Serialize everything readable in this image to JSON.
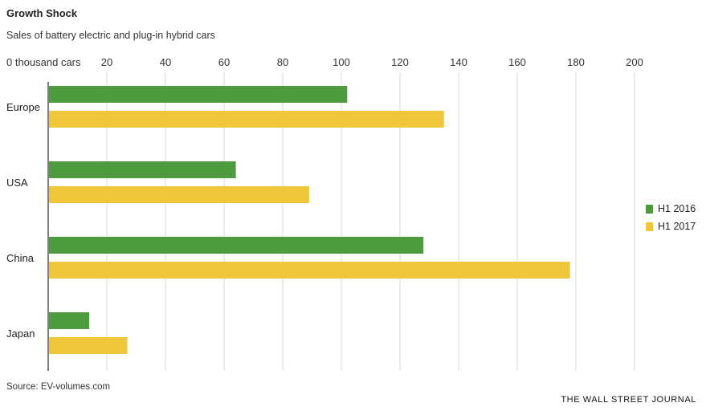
{
  "header": {
    "title": "Growth Shock",
    "subtitle": "Sales of battery electric and plug-in hybrid cars"
  },
  "footer": {
    "source": "Source: EV-volumes.com",
    "brand": "THE WALL STREET JOURNAL"
  },
  "colors": {
    "h1_2016": "#4e9a3f",
    "h1_2017": "#f0c63a",
    "grid": "#d9d9d9",
    "axis": "#555555"
  },
  "chart_data": {
    "type": "bar",
    "orientation": "horizontal",
    "categories": [
      "Europe",
      "USA",
      "China",
      "Japan"
    ],
    "series": [
      {
        "name": "H1 2016",
        "values": [
          102,
          64,
          128,
          14
        ]
      },
      {
        "name": "H1 2017",
        "values": [
          135,
          89,
          178,
          27
        ]
      }
    ],
    "xlim": [
      0,
      200
    ],
    "ticks": [
      0,
      20,
      40,
      60,
      80,
      100,
      120,
      140,
      160,
      180,
      200
    ],
    "tick_labels": [
      "0 thousand cars",
      "20",
      "40",
      "60",
      "80",
      "100",
      "120",
      "140",
      "160",
      "180",
      "200"
    ],
    "grid": true,
    "legend_position": "right"
  }
}
